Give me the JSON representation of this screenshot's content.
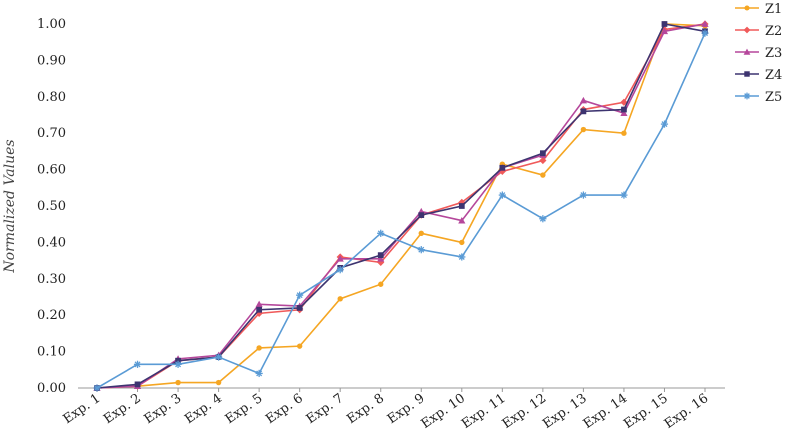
{
  "chart_data": {
    "type": "line",
    "title": "",
    "xlabel": "",
    "ylabel": "Normalized Values",
    "ylim": [
      0,
      1.0
    ],
    "yticks": [
      "0.00",
      "0.10",
      "0.20",
      "0.30",
      "0.40",
      "0.50",
      "0.60",
      "0.70",
      "0.80",
      "0.90",
      "1.00"
    ],
    "grid": false,
    "legend_position": "top-right",
    "categories": [
      "Exp. 1",
      "Exp. 2",
      "Exp. 3",
      "Exp. 4",
      "Exp. 5",
      "Exp. 6",
      "Exp. 7",
      "Exp. 8",
      "Exp. 9",
      "Exp. 10",
      "Exp. 11",
      "Exp. 12",
      "Exp. 13",
      "Exp. 14",
      "Exp. 15",
      "Exp. 16"
    ],
    "series": [
      {
        "name": "Z1",
        "color": "#f5a623",
        "marker": "circle",
        "values": [
          0.0,
          0.005,
          0.015,
          0.015,
          0.11,
          0.115,
          0.245,
          0.285,
          0.425,
          0.4,
          0.615,
          0.585,
          0.71,
          0.7,
          1.0,
          0.995
        ]
      },
      {
        "name": "Z2",
        "color": "#f05a5a",
        "marker": "diamond",
        "values": [
          0.0,
          0.005,
          0.075,
          0.085,
          0.205,
          0.215,
          0.36,
          0.345,
          0.475,
          0.51,
          0.595,
          0.625,
          0.765,
          0.785,
          0.985,
          1.0
        ]
      },
      {
        "name": "Z3",
        "color": "#b5479b",
        "marker": "triangle",
        "values": [
          0.0,
          0.005,
          0.08,
          0.09,
          0.23,
          0.225,
          0.355,
          0.355,
          0.485,
          0.46,
          0.605,
          0.64,
          0.79,
          0.755,
          0.98,
          1.0
        ]
      },
      {
        "name": "Z4",
        "color": "#3d3470",
        "marker": "square",
        "values": [
          0.0,
          0.01,
          0.075,
          0.085,
          0.215,
          0.22,
          0.33,
          0.365,
          0.475,
          0.5,
          0.605,
          0.645,
          0.76,
          0.765,
          1.0,
          0.98
        ]
      },
      {
        "name": "Z5",
        "color": "#5a9bd5",
        "marker": "star",
        "values": [
          0.0,
          0.065,
          0.065,
          0.085,
          0.04,
          0.255,
          0.325,
          0.425,
          0.38,
          0.36,
          0.53,
          0.465,
          0.53,
          0.53,
          0.725,
          0.975
        ]
      }
    ]
  }
}
